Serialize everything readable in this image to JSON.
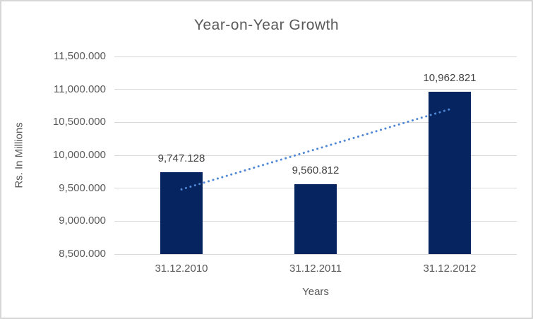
{
  "window": {
    "background": "#FFFFFF",
    "border_color": "#D6D6D6"
  },
  "chart_data": {
    "type": "bar",
    "title": "Year-on-Year Growth",
    "xlabel": "Years",
    "ylabel": "Rs. In Millions",
    "categories": [
      "31.12.2010",
      "31.12.2011",
      "31.12.2012"
    ],
    "values": [
      9747.128,
      9560.812,
      10962.821
    ],
    "value_labels": [
      "9,747.128",
      "9,560.812",
      "10,962.821"
    ],
    "ylim": [
      8500,
      11500
    ],
    "ytick_step": 500,
    "ytick_labels": [
      "11,500.000",
      "11,000.000",
      "10,500.000",
      "10,000.000",
      "9,500.000",
      "9,000.000",
      "8,500.000"
    ],
    "grid": "on",
    "legend": "none",
    "trendline": {
      "type": "linear",
      "style": "dotted"
    },
    "colors": {
      "bar": "#062560",
      "trendline": "#4F87D6",
      "gridline": "#D9D9D9",
      "axis_line": "#D9D9D9",
      "tick_text": "#595959",
      "title_text": "#595959",
      "data_label_text": "#404040"
    }
  }
}
